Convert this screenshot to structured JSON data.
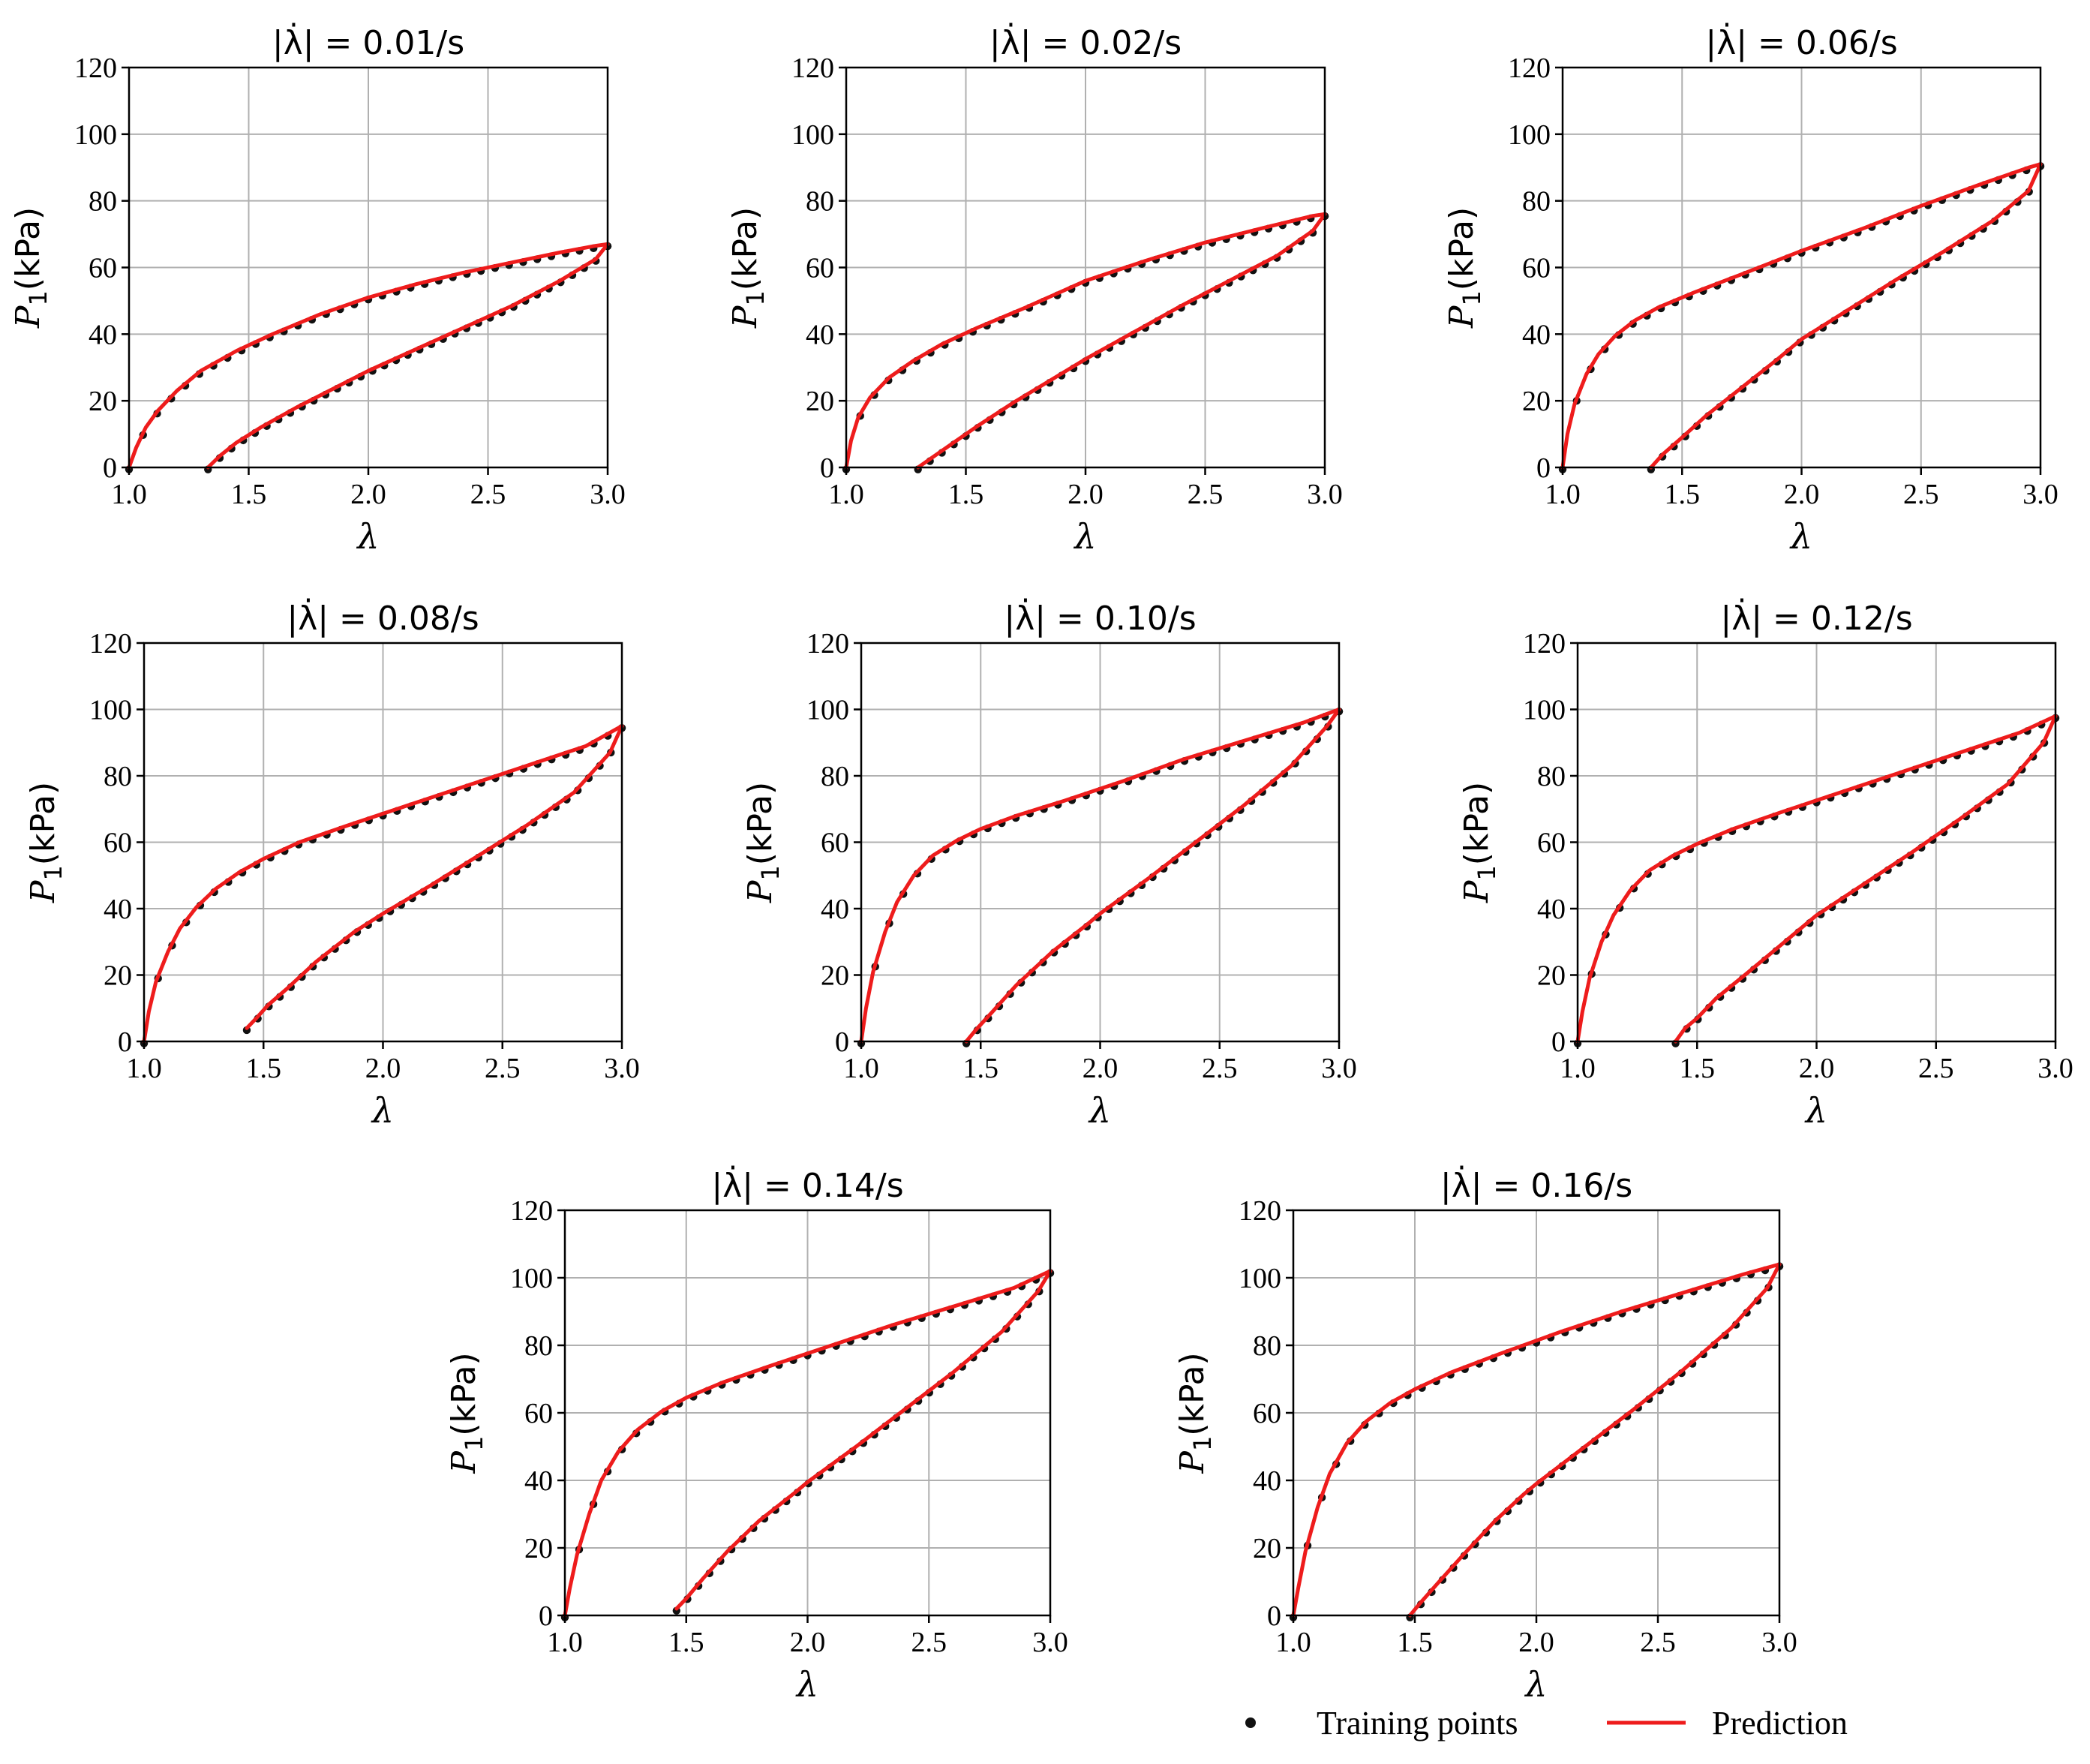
{
  "colors": {
    "points": "#111111",
    "prediction": "#ee1c1c",
    "grid": "#b0b0b0",
    "axes": "#000000"
  },
  "legend": {
    "placement": "bottom-right",
    "points_label": "Training points",
    "prediction_label": "Prediction"
  },
  "chart_data": [
    {
      "type": "scatter+line",
      "title_prefix": "|λ̇| = ",
      "title_value": "0.01/s",
      "xlabel": "λ",
      "ylabel_sym": "P",
      "ylabel_sub": "1",
      "ylabel_unit": "(kPa)",
      "xlim": [
        1.0,
        3.0
      ],
      "ylim": [
        0,
        120
      ],
      "xticks": [
        "1.0",
        "1.5",
        "2.0",
        "2.5",
        "3.0"
      ],
      "yticks": [
        "0",
        "20",
        "40",
        "60",
        "80",
        "100",
        "120"
      ],
      "loading_curve": {
        "name": "loading",
        "x": [
          1.0,
          1.03,
          1.07,
          1.12,
          1.2,
          1.3,
          1.45,
          1.6,
          1.8,
          2.0,
          2.2,
          2.4,
          2.6,
          2.8,
          2.95,
          3.0
        ],
        "y": [
          0,
          6,
          12,
          17,
          23,
          29,
          35,
          40,
          46,
          51,
          55,
          58.5,
          61.5,
          64.5,
          66.5,
          67
        ]
      },
      "unloading_curve": {
        "name": "unloading",
        "x": [
          1.33,
          1.38,
          1.45,
          1.55,
          1.7,
          1.85,
          2.0,
          2.2,
          2.4,
          2.6,
          2.8,
          2.95,
          3.0
        ],
        "y": [
          0,
          3.5,
          7.5,
          12,
          18,
          23.5,
          29,
          35.5,
          42,
          48.5,
          56,
          62.5,
          67
        ]
      }
    },
    {
      "type": "scatter+line",
      "title_prefix": "|λ̇| = ",
      "title_value": "0.02/s",
      "xlabel": "λ",
      "ylabel_sym": "P",
      "ylabel_sub": "1",
      "ylabel_unit": "(kPa)",
      "xlim": [
        1.0,
        3.0
      ],
      "ylim": [
        0,
        120
      ],
      "xticks": [
        "1.0",
        "1.5",
        "2.0",
        "2.5",
        "3.0"
      ],
      "yticks": [
        "0",
        "20",
        "40",
        "60",
        "80",
        "100",
        "120"
      ],
      "loading_curve": {
        "name": "loading",
        "x": [
          1.0,
          1.02,
          1.05,
          1.1,
          1.18,
          1.28,
          1.4,
          1.55,
          1.75,
          2.0,
          2.25,
          2.5,
          2.75,
          2.95,
          3.0
        ],
        "y": [
          0,
          8,
          15,
          21,
          27,
          32,
          37,
          42,
          48,
          56,
          62,
          67.5,
          72,
          75.5,
          76
        ]
      },
      "unloading_curve": {
        "name": "unloading",
        "x": [
          1.3,
          1.36,
          1.45,
          1.55,
          1.7,
          1.85,
          2.0,
          2.2,
          2.4,
          2.6,
          2.8,
          2.95,
          3.0
        ],
        "y": [
          0,
          3,
          7.5,
          12.5,
          19.5,
          26,
          32.5,
          40.5,
          48.5,
          56,
          63.5,
          71,
          76
        ]
      }
    },
    {
      "type": "scatter+line",
      "title_prefix": "|λ̇| = ",
      "title_value": "0.06/s",
      "xlabel": "λ",
      "ylabel_sym": "P",
      "ylabel_sub": "1",
      "ylabel_unit": "(kPa)",
      "xlim": [
        1.0,
        3.0
      ],
      "ylim": [
        0,
        120
      ],
      "xticks": [
        "1.0",
        "1.5",
        "2.0",
        "2.5",
        "3.0"
      ],
      "yticks": [
        "0",
        "20",
        "40",
        "60",
        "80",
        "100",
        "120"
      ],
      "loading_curve": {
        "name": "loading",
        "x": [
          1.0,
          1.02,
          1.05,
          1.1,
          1.15,
          1.22,
          1.3,
          1.4,
          1.55,
          1.75,
          2.0,
          2.25,
          2.5,
          2.75,
          2.95,
          3.0
        ],
        "y": [
          0,
          10,
          19,
          28,
          34,
          39.5,
          44,
          48,
          52.5,
          58,
          65,
          71.5,
          78.5,
          85,
          90,
          91
        ]
      },
      "unloading_curve": {
        "name": "unloading",
        "x": [
          1.37,
          1.42,
          1.5,
          1.6,
          1.75,
          1.9,
          2.0,
          2.2,
          2.4,
          2.6,
          2.8,
          2.95,
          3.0
        ],
        "y": [
          0,
          4,
          9,
          15.5,
          24,
          32.5,
          38.5,
          47.5,
          56.5,
          65,
          74,
          83,
          91
        ]
      }
    },
    {
      "type": "scatter+line",
      "title_prefix": "|λ̇| = ",
      "title_value": "0.08/s",
      "xlabel": "λ",
      "ylabel_sym": "P",
      "ylabel_sub": "1",
      "ylabel_unit": "(kPa)",
      "xlim": [
        1.0,
        3.0
      ],
      "ylim": [
        0,
        120
      ],
      "xticks": [
        "1.0",
        "1.5",
        "2.0",
        "2.5",
        "3.0"
      ],
      "yticks": [
        "0",
        "20",
        "40",
        "60",
        "80",
        "100",
        "120"
      ],
      "loading_curve": {
        "name": "loading",
        "x": [
          1.0,
          1.02,
          1.05,
          1.1,
          1.15,
          1.22,
          1.3,
          1.4,
          1.5,
          1.65,
          1.85,
          2.1,
          2.35,
          2.6,
          2.85,
          3.0
        ],
        "y": [
          0,
          9,
          18,
          27,
          34,
          40.5,
          46,
          51,
          55,
          60,
          65,
          71,
          77,
          83,
          89,
          95
        ]
      },
      "unloading_curve": {
        "name": "unloading",
        "x": [
          1.43,
          1.47,
          1.52,
          1.6,
          1.72,
          1.88,
          2.0,
          2.2,
          2.4,
          2.6,
          2.8,
          2.95,
          3.0
        ],
        "y": [
          4,
          7,
          11,
          16,
          24,
          33,
          38.5,
          47,
          56,
          65,
          75,
          87,
          95
        ]
      }
    },
    {
      "type": "scatter+line",
      "title_prefix": "|λ̇| = ",
      "title_value": "0.10/s",
      "xlabel": "λ",
      "ylabel_sym": "P",
      "ylabel_sub": "1",
      "ylabel_unit": "(kPa)",
      "xlim": [
        1.0,
        3.0
      ],
      "ylim": [
        0,
        120
      ],
      "xticks": [
        "1.0",
        "1.5",
        "2.0",
        "2.5",
        "3.0"
      ],
      "yticks": [
        "0",
        "20",
        "40",
        "60",
        "80",
        "100",
        "120"
      ],
      "loading_curve": {
        "name": "loading",
        "x": [
          1.0,
          1.02,
          1.05,
          1.1,
          1.15,
          1.22,
          1.3,
          1.4,
          1.5,
          1.65,
          1.85,
          2.1,
          2.35,
          2.6,
          2.85,
          3.0
        ],
        "y": [
          0,
          10,
          21,
          33,
          42,
          50,
          56,
          60.5,
          64,
          68,
          72.5,
          78.5,
          85,
          90.5,
          96,
          100
        ]
      },
      "unloading_curve": {
        "name": "unloading",
        "x": [
          1.44,
          1.48,
          1.55,
          1.65,
          1.8,
          1.95,
          2.0,
          2.2,
          2.4,
          2.6,
          2.8,
          2.95,
          3.0
        ],
        "y": [
          0,
          3.5,
          9,
          17,
          27,
          35.5,
          38.5,
          49,
          60,
          71,
          83,
          95,
          100
        ]
      }
    },
    {
      "type": "scatter+line",
      "title_prefix": "|λ̇| = ",
      "title_value": "0.12/s",
      "xlabel": "λ",
      "ylabel_sym": "P",
      "ylabel_sub": "1",
      "ylabel_unit": "(kPa)",
      "xlim": [
        1.0,
        3.0
      ],
      "ylim": [
        0,
        120
      ],
      "xticks": [
        "1.0",
        "1.5",
        "2.0",
        "2.5",
        "3.0"
      ],
      "yticks": [
        "0",
        "20",
        "40",
        "60",
        "80",
        "100",
        "120"
      ],
      "loading_curve": {
        "name": "loading",
        "x": [
          1.0,
          1.02,
          1.05,
          1.1,
          1.15,
          1.22,
          1.3,
          1.4,
          1.5,
          1.65,
          1.85,
          2.1,
          2.35,
          2.6,
          2.85,
          3.0
        ],
        "y": [
          0,
          9,
          19,
          30,
          38,
          45.5,
          51.5,
          56,
          59.5,
          64,
          69,
          75,
          81,
          87,
          93,
          98
        ]
      },
      "unloading_curve": {
        "name": "unloading",
        "x": [
          1.41,
          1.45,
          1.5,
          1.58,
          1.7,
          1.85,
          2.0,
          2.2,
          2.4,
          2.6,
          2.8,
          2.95,
          3.0
        ],
        "y": [
          0,
          4,
          7,
          13,
          20,
          29,
          38,
          47.5,
          57,
          67,
          77.5,
          90,
          98
        ]
      }
    },
    {
      "type": "scatter+line",
      "title_prefix": "|λ̇| = ",
      "title_value": "0.14/s",
      "xlabel": "λ",
      "ylabel_sym": "P",
      "ylabel_sub": "1",
      "ylabel_unit": "(kPa)",
      "xlim": [
        1.0,
        3.0
      ],
      "ylim": [
        0,
        120
      ],
      "xticks": [
        "1.0",
        "1.5",
        "2.0",
        "2.5",
        "3.0"
      ],
      "yticks": [
        "0",
        "20",
        "40",
        "60",
        "80",
        "100",
        "120"
      ],
      "loading_curve": {
        "name": "loading",
        "x": [
          1.0,
          1.02,
          1.05,
          1.1,
          1.15,
          1.22,
          1.3,
          1.4,
          1.5,
          1.65,
          1.85,
          2.1,
          2.35,
          2.6,
          2.85,
          3.0
        ],
        "y": [
          0,
          8,
          18,
          30,
          40,
          48.5,
          55,
          60.5,
          64.5,
          69,
          74,
          80,
          86,
          91.5,
          97,
          102
        ]
      },
      "unloading_curve": {
        "name": "unloading",
        "x": [
          1.46,
          1.5,
          1.57,
          1.67,
          1.8,
          1.95,
          2.0,
          2.2,
          2.4,
          2.6,
          2.8,
          2.95,
          3.0
        ],
        "y": [
          2,
          5,
          11,
          19,
          28,
          36.5,
          39.5,
          50,
          61,
          72,
          84,
          96,
          102
        ]
      }
    },
    {
      "type": "scatter+line",
      "title_prefix": "|λ̇| = ",
      "title_value": "0.16/s",
      "xlabel": "λ",
      "ylabel_sym": "P",
      "ylabel_sub": "1",
      "ylabel_unit": "(kPa)",
      "xlim": [
        1.0,
        3.0
      ],
      "ylim": [
        0,
        120
      ],
      "xticks": [
        "1.0",
        "1.5",
        "2.0",
        "2.5",
        "3.0"
      ],
      "yticks": [
        "0",
        "20",
        "40",
        "60",
        "80",
        "100",
        "120"
      ],
      "loading_curve": {
        "name": "loading",
        "x": [
          1.0,
          1.02,
          1.05,
          1.1,
          1.15,
          1.22,
          1.3,
          1.4,
          1.5,
          1.65,
          1.85,
          2.1,
          2.35,
          2.6,
          2.85,
          3.0
        ],
        "y": [
          0,
          8,
          19,
          32,
          42,
          51,
          57.5,
          63,
          67,
          72,
          77.5,
          84,
          90,
          95.5,
          101,
          104
        ]
      },
      "unloading_curve": {
        "name": "unloading",
        "x": [
          1.48,
          1.52,
          1.6,
          1.7,
          1.83,
          1.95,
          2.0,
          2.2,
          2.4,
          2.6,
          2.8,
          2.95,
          3.0
        ],
        "y": [
          0,
          3.5,
          10,
          18,
          28,
          36,
          39,
          50,
          61,
          72.5,
          85,
          97,
          104
        ]
      }
    }
  ]
}
